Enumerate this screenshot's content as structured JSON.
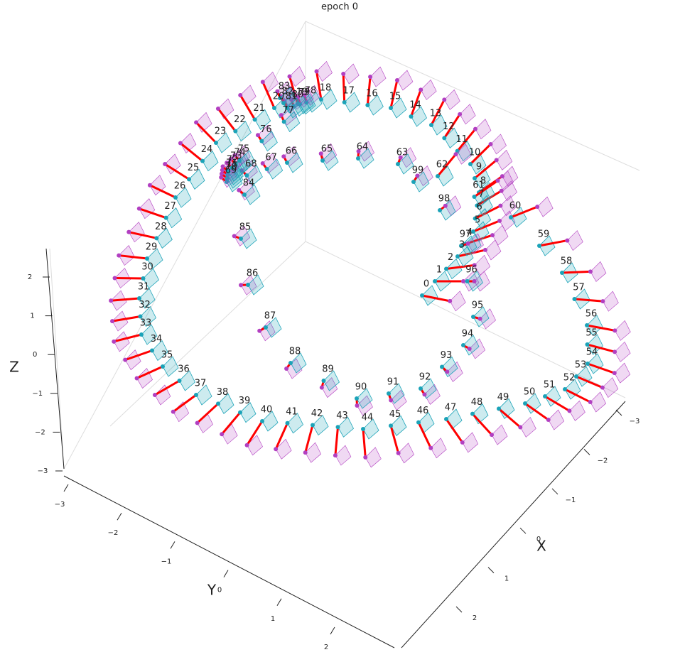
{
  "chart_data": {
    "type": "pose-graph-3d",
    "title": "epoch 0",
    "xlabel": "X",
    "ylabel": "Y",
    "zlabel": "Z",
    "xticks": [
      {
        "value": -3,
        "label": "−3"
      },
      {
        "value": -2,
        "label": "−2"
      },
      {
        "value": -1,
        "label": "−1"
      },
      0,
      1,
      2
    ],
    "yticks": [
      {
        "value": -3,
        "label": "−3"
      },
      {
        "value": -2,
        "label": "−2"
      },
      {
        "value": -1,
        "label": "−1"
      },
      0,
      1,
      2
    ],
    "zticks": [
      2,
      1,
      0,
      {
        "value": -1,
        "label": "−1"
      },
      {
        "value": -2,
        "label": "−2"
      },
      {
        "value": -3,
        "label": "−3"
      }
    ],
    "pose_labels": [
      0,
      1,
      2,
      3,
      4,
      5,
      6,
      7,
      8,
      9,
      10,
      11,
      12,
      13,
      14,
      15,
      16,
      17,
      18,
      19,
      20,
      21,
      22,
      23,
      24,
      25,
      26,
      27,
      28,
      29,
      30,
      31,
      32,
      33,
      34,
      35,
      36,
      37,
      38,
      39,
      40,
      41,
      42,
      43,
      44,
      45,
      46,
      47,
      48,
      49,
      50,
      51,
      52,
      53,
      54,
      55,
      56,
      57,
      58,
      59,
      60,
      61,
      62,
      63,
      64,
      65,
      66,
      67,
      68,
      69,
      70,
      71,
      72,
      73,
      74,
      75,
      76,
      77,
      78,
      79,
      80,
      81,
      82,
      83,
      84,
      85,
      86,
      87,
      88,
      89,
      90,
      91,
      92,
      93,
      94,
      95,
      96,
      97,
      98,
      99
    ],
    "colors": {
      "pose": "#1ba3b8",
      "estimate": "#b23fc1",
      "error": "#ff0000"
    }
  }
}
